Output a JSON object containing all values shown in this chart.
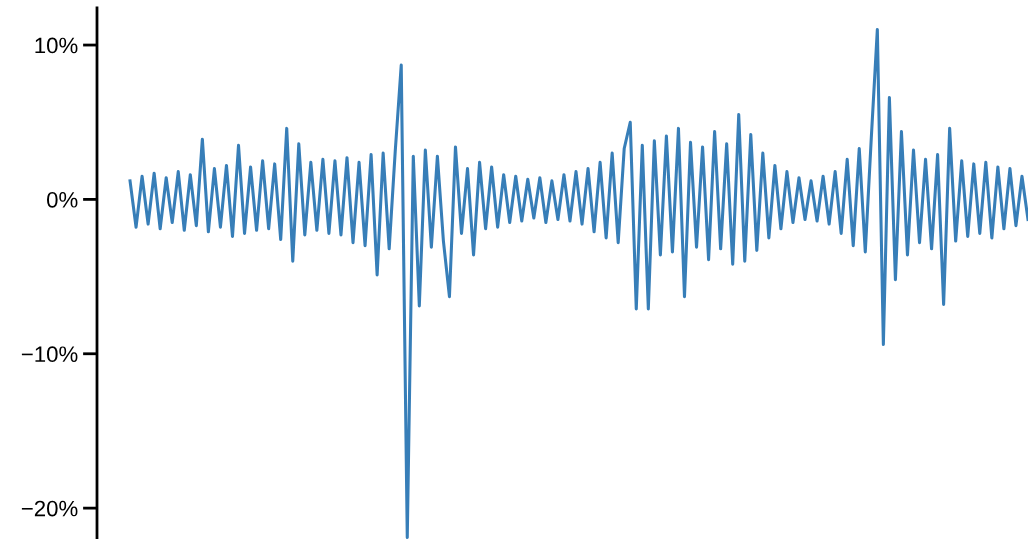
{
  "chart_data": {
    "type": "line",
    "color": "#377eb8",
    "categories": [
      null,
      null,
      null,
      null,
      null,
      null,
      null,
      null,
      null,
      null,
      null,
      null,
      null,
      null,
      null,
      null,
      null,
      null,
      null,
      null,
      null,
      null,
      null,
      null,
      null,
      null,
      null,
      null,
      null,
      null,
      null,
      null,
      null,
      null,
      null,
      null,
      null,
      null,
      null,
      null,
      null,
      null,
      null,
      null,
      null,
      null,
      null,
      null,
      null,
      null,
      null,
      null,
      null,
      null,
      null,
      null,
      null,
      null,
      null,
      null,
      null,
      null,
      null,
      null,
      null,
      null,
      null,
      null,
      null,
      null,
      null,
      null,
      null,
      null,
      null,
      null,
      null,
      null,
      null,
      null,
      null,
      null,
      null,
      null,
      null,
      null,
      null,
      null,
      null,
      null,
      null,
      null,
      null,
      null,
      null,
      null,
      null,
      null,
      null,
      null,
      null,
      null,
      null,
      null,
      null,
      null,
      null,
      null,
      null,
      null,
      null,
      null,
      null,
      null,
      null,
      null,
      null,
      null,
      null,
      null,
      null,
      null,
      null,
      null,
      null,
      null,
      null,
      null,
      null,
      null,
      null,
      null,
      null,
      null,
      null,
      null,
      null,
      null,
      null,
      null,
      null,
      null,
      null,
      null,
      null,
      null,
      null,
      null,
      null,
      null
    ],
    "values": [
      1.2,
      -1.8,
      1.5,
      -1.6,
      1.7,
      -1.9,
      1.4,
      -1.5,
      1.8,
      -2.0,
      1.6,
      -1.7,
      3.9,
      -2.1,
      2.0,
      -1.8,
      2.2,
      -2.4,
      3.5,
      -2.2,
      2.1,
      -2.0,
      2.5,
      -1.9,
      2.3,
      -2.6,
      4.6,
      -4.0,
      3.6,
      -2.3,
      2.4,
      -2.0,
      2.6,
      -2.2,
      2.5,
      -2.3,
      2.7,
      -2.8,
      2.4,
      -3.0,
      2.9,
      -4.9,
      3.0,
      -3.2,
      3.1,
      8.7,
      -21.9,
      2.8,
      -6.9,
      3.2,
      -3.1,
      2.8,
      -2.7,
      -6.3,
      3.4,
      -2.2,
      2.0,
      -3.6,
      2.4,
      -1.9,
      2.1,
      -1.8,
      1.6,
      -1.5,
      1.5,
      -1.4,
      1.3,
      -1.2,
      1.4,
      -1.5,
      1.2,
      -1.3,
      1.6,
      -1.4,
      1.8,
      -1.6,
      2.0,
      -2.1,
      2.4,
      -2.5,
      3.0,
      -2.8,
      3.3,
      5.0,
      -7.1,
      3.5,
      -7.1,
      3.8,
      -3.6,
      4.1,
      -3.4,
      4.6,
      -6.3,
      3.7,
      -3.1,
      3.4,
      -3.9,
      4.4,
      -3.2,
      3.6,
      -4.2,
      5.5,
      -4.0,
      4.2,
      -3.3,
      3.0,
      -2.5,
      2.2,
      -1.9,
      1.8,
      -1.5,
      1.4,
      -1.3,
      1.2,
      -1.4,
      1.5,
      -1.6,
      1.8,
      -2.2,
      2.6,
      -3.0,
      3.3,
      -3.4,
      4.0,
      11.0,
      -9.4,
      6.6,
      -5.2,
      4.4,
      -3.6,
      3.2,
      -2.8,
      2.6,
      -3.2,
      2.9,
      -6.8,
      4.6,
      -2.7,
      2.5,
      -2.4,
      2.3,
      -2.2,
      2.4,
      -2.5,
      2.1,
      -1.9,
      2.0,
      -1.7,
      1.5,
      -1.3
    ],
    "ylim": [
      -22,
      12.4
    ],
    "yticks": [
      {
        "value": -20,
        "label": "−20%"
      },
      {
        "value": -10,
        "label": "−10%"
      },
      {
        "value": 0,
        "label": "0%"
      },
      {
        "value": 10,
        "label": "10%"
      }
    ],
    "tick_labels": "y",
    "grid": false,
    "legend": false,
    "marker": "none",
    "line_style": "solid"
  }
}
